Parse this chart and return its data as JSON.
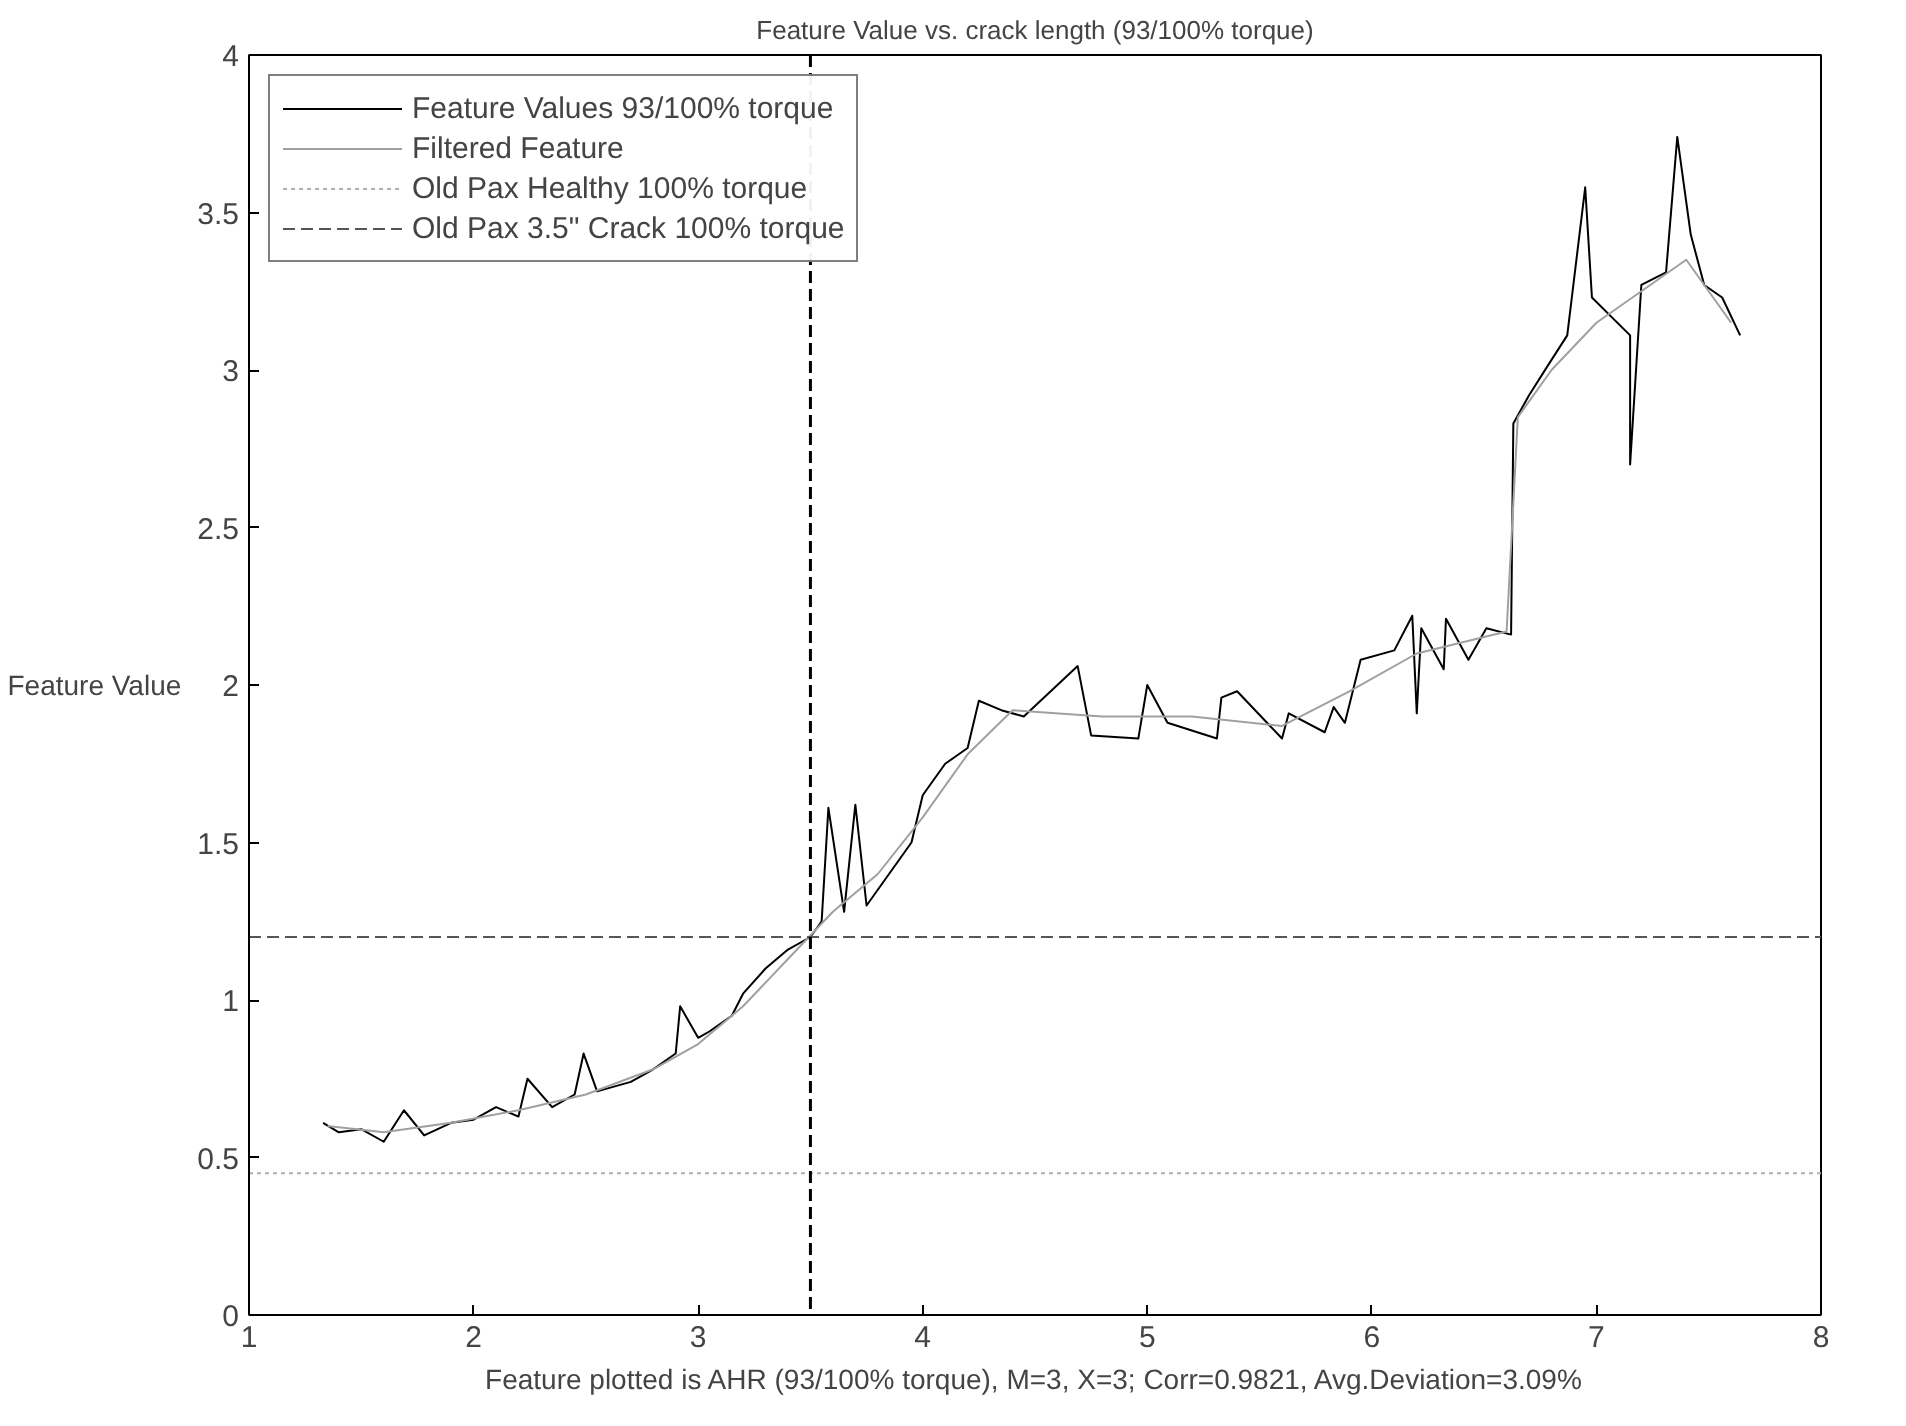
{
  "chart_data": {
    "type": "line",
    "title": "Feature Value vs. crack length (93/100% torque)",
    "xlabel": "Feature plotted is AHR (93/100% torque), M=3, X=3; Corr=0.9821, Avg.Deviation=3.09%",
    "ylabel": "Feature Value",
    "xlim": [
      1,
      8
    ],
    "ylim": [
      0,
      4
    ],
    "xticks": [
      1,
      2,
      3,
      4,
      5,
      6,
      7,
      8
    ],
    "yticks": [
      0,
      0.5,
      1,
      1.5,
      2,
      2.5,
      3,
      3.5,
      4
    ],
    "grid": false,
    "legend": "top left",
    "marker": "none",
    "series": [
      {
        "name": "Feature Values 93/100% torque",
        "color": "#000000",
        "line_style": "solid",
        "x": [
          1.33,
          1.4,
          1.5,
          1.6,
          1.69,
          1.78,
          1.9,
          2.0,
          2.1,
          2.2,
          2.24,
          2.35,
          2.45,
          2.49,
          2.55,
          2.7,
          2.8,
          2.9,
          2.92,
          3.0,
          3.05,
          3.15,
          3.2,
          3.3,
          3.4,
          3.5,
          3.55,
          3.58,
          3.65,
          3.7,
          3.75,
          3.85,
          3.95,
          4.0,
          4.1,
          4.2,
          4.25,
          4.35,
          4.45,
          4.69,
          4.75,
          4.96,
          5.0,
          5.09,
          5.31,
          5.33,
          5.4,
          5.6,
          5.63,
          5.79,
          5.83,
          5.88,
          5.95,
          6.1,
          6.18,
          6.2,
          6.22,
          6.32,
          6.33,
          6.43,
          6.51,
          6.62,
          6.63,
          6.7,
          6.78,
          6.87,
          6.95,
          6.98,
          7.15,
          7.15,
          7.2,
          7.31,
          7.36,
          7.42,
          7.48,
          7.56,
          7.64
        ],
        "values": [
          0.61,
          0.58,
          0.59,
          0.55,
          0.65,
          0.57,
          0.61,
          0.62,
          0.66,
          0.63,
          0.75,
          0.66,
          0.7,
          0.83,
          0.71,
          0.74,
          0.78,
          0.83,
          0.98,
          0.88,
          0.9,
          0.95,
          1.02,
          1.1,
          1.16,
          1.2,
          1.25,
          1.61,
          1.28,
          1.62,
          1.3,
          1.4,
          1.5,
          1.65,
          1.75,
          1.8,
          1.95,
          1.92,
          1.9,
          2.06,
          1.84,
          1.83,
          2.0,
          1.88,
          1.83,
          1.96,
          1.98,
          1.83,
          1.91,
          1.85,
          1.93,
          1.88,
          2.08,
          2.11,
          2.22,
          1.91,
          2.18,
          2.05,
          2.21,
          2.08,
          2.18,
          2.16,
          2.83,
          2.92,
          3.01,
          3.11,
          3.58,
          3.23,
          3.11,
          2.7,
          3.27,
          3.31,
          3.74,
          3.43,
          3.27,
          3.23,
          3.11
        ]
      },
      {
        "name": "Filtered Feature",
        "color": "#a0a0a0",
        "line_style": "solid",
        "x": [
          1.35,
          1.6,
          1.9,
          2.2,
          2.5,
          2.8,
          3.0,
          3.2,
          3.4,
          3.6,
          3.8,
          4.0,
          4.2,
          4.4,
          4.8,
          5.2,
          5.6,
          5.9,
          6.2,
          6.6,
          6.65,
          6.8,
          7.0,
          7.2,
          7.4,
          7.6
        ],
        "values": [
          0.6,
          0.58,
          0.61,
          0.65,
          0.7,
          0.78,
          0.86,
          0.98,
          1.13,
          1.28,
          1.4,
          1.58,
          1.78,
          1.92,
          1.9,
          1.9,
          1.87,
          1.98,
          2.1,
          2.17,
          2.85,
          3.0,
          3.15,
          3.25,
          3.35,
          3.15
        ]
      },
      {
        "name": "Old Pax Healthy 100% torque",
        "color": "#b0b0b0",
        "line_style": "dotted",
        "x": [
          1,
          8
        ],
        "values": [
          0.45,
          0.45
        ]
      },
      {
        "name": "Old Pax 3.5\" Crack 100% torque",
        "color": "#555555",
        "line_style": "dashed",
        "x": [
          1,
          8
        ],
        "values": [
          1.2,
          1.2
        ]
      }
    ],
    "ref_lines": [
      {
        "axis": "x",
        "value": 3.5,
        "label": null,
        "color": "#000000",
        "line_style": "dashed"
      }
    ]
  }
}
